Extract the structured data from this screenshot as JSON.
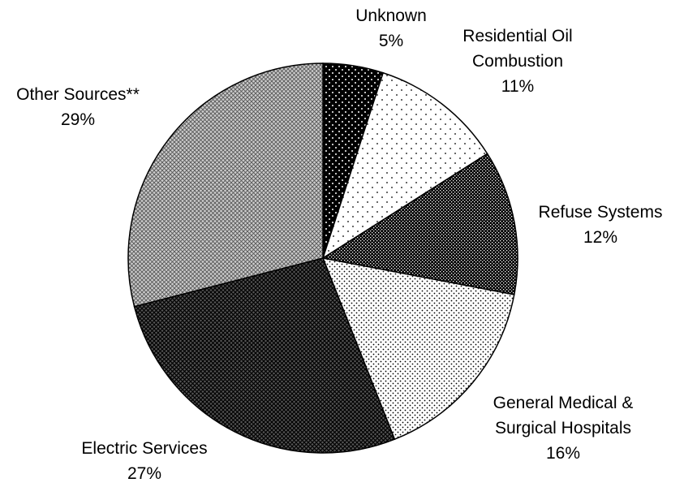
{
  "chart_data": {
    "type": "pie",
    "categories": [
      "Unknown",
      "Residential Oil Combustion",
      "Refuse Systems",
      "General Medical & Surgical Hospitals",
      "Electric Services",
      "Other Sources**"
    ],
    "values": [
      5,
      11,
      12,
      16,
      27,
      29
    ],
    "value_labels": [
      "5%",
      "11%",
      "12%",
      "16%",
      "27%",
      "29%"
    ],
    "colors": [
      "#000000",
      "#ffffff",
      "#000000",
      "#ffffff",
      "#555555",
      "#cccccc"
    ]
  }
}
